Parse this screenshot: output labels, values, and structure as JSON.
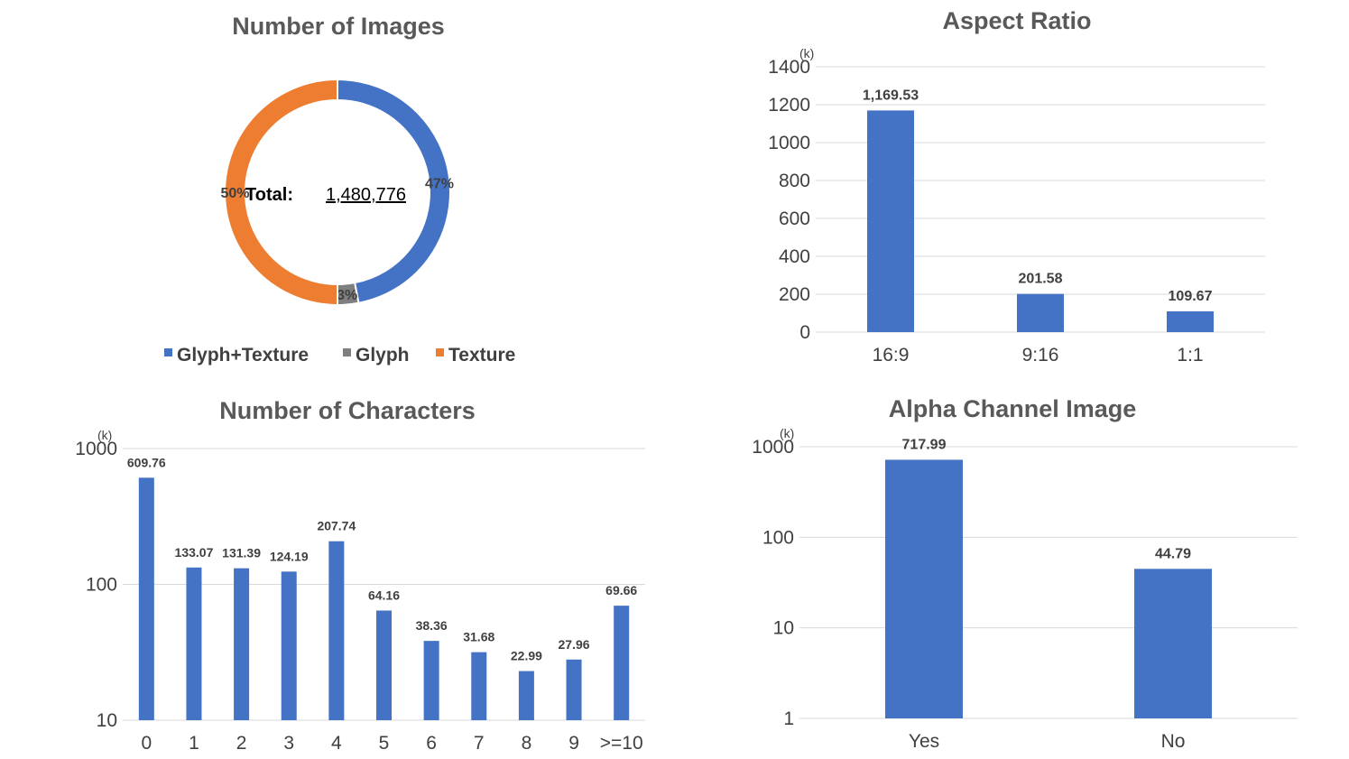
{
  "chart_data": [
    {
      "type": "pie",
      "title": "Number of Images",
      "center_label": "Total:",
      "center_value": "1,480,776",
      "slices": [
        {
          "name": "Glyph+Texture",
          "value": 47,
          "label": "47%",
          "color": "#4472C4"
        },
        {
          "name": "Glyph",
          "value": 3,
          "label": "3%",
          "color": "#7F7F7F"
        },
        {
          "name": "Texture",
          "value": 50,
          "label": "50%",
          "color": "#ED7D31"
        }
      ]
    },
    {
      "type": "bar",
      "title": "Aspect Ratio",
      "unit": "(k)",
      "categories": [
        "16:9",
        "9:16",
        "1:1"
      ],
      "values": [
        1169.53,
        201.58,
        109.67
      ],
      "labels": [
        "1,169.53",
        "201.58",
        "109.67"
      ],
      "yticks": [
        "0",
        "200",
        "400",
        "600",
        "800",
        "1000",
        "1200",
        "1400"
      ],
      "ylim": [
        0,
        1400
      ],
      "color": "#4472C4"
    },
    {
      "type": "bar",
      "title": "Number of Characters",
      "unit": "(k)",
      "yscale": "log",
      "categories": [
        "0",
        "1",
        "2",
        "3",
        "4",
        "5",
        "6",
        "7",
        "8",
        "9",
        ">=10"
      ],
      "values": [
        609.76,
        133.07,
        131.39,
        124.19,
        207.74,
        64.16,
        38.36,
        31.68,
        22.99,
        27.96,
        69.66
      ],
      "labels": [
        "609.76",
        "133.07",
        "131.39",
        "124.19",
        "207.74",
        "64.16",
        "38.36",
        "31.68",
        "22.99",
        "27.96",
        "69.66"
      ],
      "yticks": [
        "10",
        "100",
        "1000"
      ],
      "ylim": [
        10,
        1000
      ],
      "color": "#4472C4"
    },
    {
      "type": "bar",
      "title": "Alpha Channel Image",
      "unit": "(k)",
      "yscale": "log",
      "categories": [
        "Yes",
        "No"
      ],
      "values": [
        717.99,
        44.79
      ],
      "labels": [
        "717.99",
        "44.79"
      ],
      "yticks": [
        "1",
        "10",
        "100",
        "1000"
      ],
      "ylim": [
        1,
        1000
      ],
      "color": "#4472C4"
    }
  ]
}
